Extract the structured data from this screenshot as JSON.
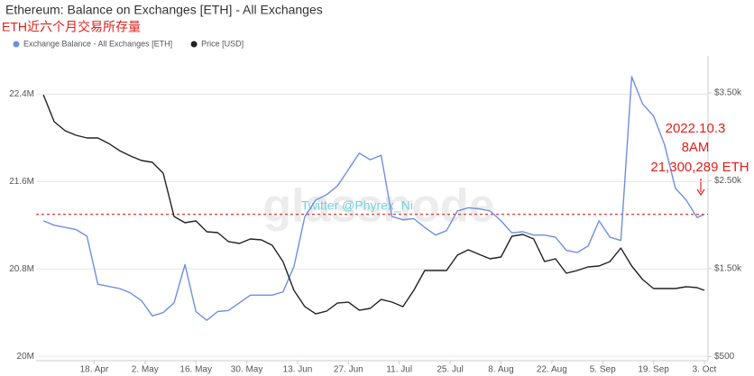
{
  "chart_data": {
    "type": "line",
    "title": "Ethereum: Balance on Exchanges [ETH] - All Exchanges",
    "subtitle": "ETH近六个月交易所存量",
    "watermark": "glassnode",
    "credit": "Twitter @Phyrex_Ni",
    "annotation": [
      "2022.10.3",
      "8AM",
      "21,300,289 ETH"
    ],
    "reference_line": {
      "value": 21.300289,
      "color": "#e53935"
    },
    "x": [
      "4. Apr",
      "7. Apr",
      "10. Apr",
      "13. Apr",
      "16. Apr",
      "19. Apr",
      "22. Apr",
      "25. Apr",
      "28. Apr",
      "1. May",
      "4. May",
      "7. May",
      "10. May",
      "13. May",
      "16. May",
      "19. May",
      "22. May",
      "25. May",
      "28. May",
      "31. May",
      "3. Jun",
      "6. Jun",
      "9. Jun",
      "12. Jun",
      "15. Jun",
      "18. Jun",
      "21. Jun",
      "24. Jun",
      "27. Jun",
      "30. Jun",
      "3. Jul",
      "6. Jul",
      "9. Jul",
      "12. Jul",
      "15. Jul",
      "18. Jul",
      "21. Jul",
      "24. Jul",
      "27. Jul",
      "30. Jul",
      "2. Aug",
      "5. Aug",
      "8. Aug",
      "11. Aug",
      "14. Aug",
      "17. Aug",
      "20. Aug",
      "23. Aug",
      "26. Aug",
      "29. Aug",
      "1. Sep",
      "4. Sep",
      "7. Sep",
      "10. Sep",
      "13. Sep",
      "16. Sep",
      "19. Sep",
      "22. Sep",
      "25. Sep",
      "28. Sep",
      "1. Oct",
      "3. Oct"
    ],
    "xlim": [
      "2. Apr",
      "4. Oct"
    ],
    "xticks": [
      "18. Apr",
      "2. May",
      "16. May",
      "30. May",
      "13. Jun",
      "27. Jun",
      "11. Jul",
      "25. Jul",
      "8. Aug",
      "22. Aug",
      "5. Sep",
      "19. Sep",
      "3. Oct"
    ],
    "ylim": [
      19.96,
      22.75
    ],
    "yticks": [
      {
        "value": 20,
        "label": "20M"
      },
      {
        "value": 20.8,
        "label": "20.8M"
      },
      {
        "value": 21.6,
        "label": "21.6M"
      },
      {
        "value": 22.4,
        "label": "22.4M"
      }
    ],
    "y2lim": [
      453,
      3921
    ],
    "y2ticks": [
      {
        "value": 500,
        "label": "$500"
      },
      {
        "value": 1500,
        "label": "$1.50k"
      },
      {
        "value": 2500,
        "label": "$2.50k"
      },
      {
        "value": 3500,
        "label": "$3.50k"
      }
    ],
    "grid": true,
    "legend": "top-left",
    "series": [
      {
        "name": "Exchange Balance - All Exchanges [ETH]",
        "color": "#6f8fe0",
        "axis": "y",
        "values": [
          21.24,
          21.2,
          21.18,
          21.16,
          21.1,
          20.66,
          20.64,
          20.62,
          20.58,
          20.51,
          20.37,
          20.4,
          20.49,
          20.84,
          20.41,
          20.33,
          20.41,
          20.42,
          20.49,
          20.56,
          20.56,
          20.56,
          20.59,
          20.82,
          21.28,
          21.43,
          21.48,
          21.56,
          21.71,
          21.86,
          21.8,
          21.84,
          21.28,
          21.25,
          21.26,
          21.18,
          21.11,
          21.15,
          21.33,
          21.36,
          21.35,
          21.33,
          21.24,
          21.13,
          21.14,
          21.11,
          21.11,
          21.09,
          20.97,
          20.95,
          21.01,
          21.24,
          21.09,
          21.06,
          22.56,
          22.31,
          22.2,
          21.94,
          21.54,
          21.43,
          21.27,
          21.3
        ]
      },
      {
        "name": "Price [USD]",
        "color": "#222222",
        "axis": "y2",
        "values": [
          3479,
          3172,
          3069,
          3018,
          2987,
          2987,
          2925,
          2843,
          2782,
          2731,
          2710,
          2587,
          2094,
          2023,
          2043,
          1920,
          1910,
          1807,
          1787,
          1838,
          1828,
          1766,
          1581,
          1253,
          1068,
          986,
          1017,
          1109,
          1119,
          1027,
          1048,
          1150,
          1120,
          1068,
          1253,
          1479,
          1479,
          1479,
          1653,
          1715,
          1663,
          1612,
          1633,
          1869,
          1889,
          1838,
          1581,
          1612,
          1448,
          1479,
          1520,
          1530,
          1581,
          1735,
          1530,
          1376,
          1274,
          1274,
          1274,
          1294,
          1284,
          1253
        ]
      }
    ]
  }
}
